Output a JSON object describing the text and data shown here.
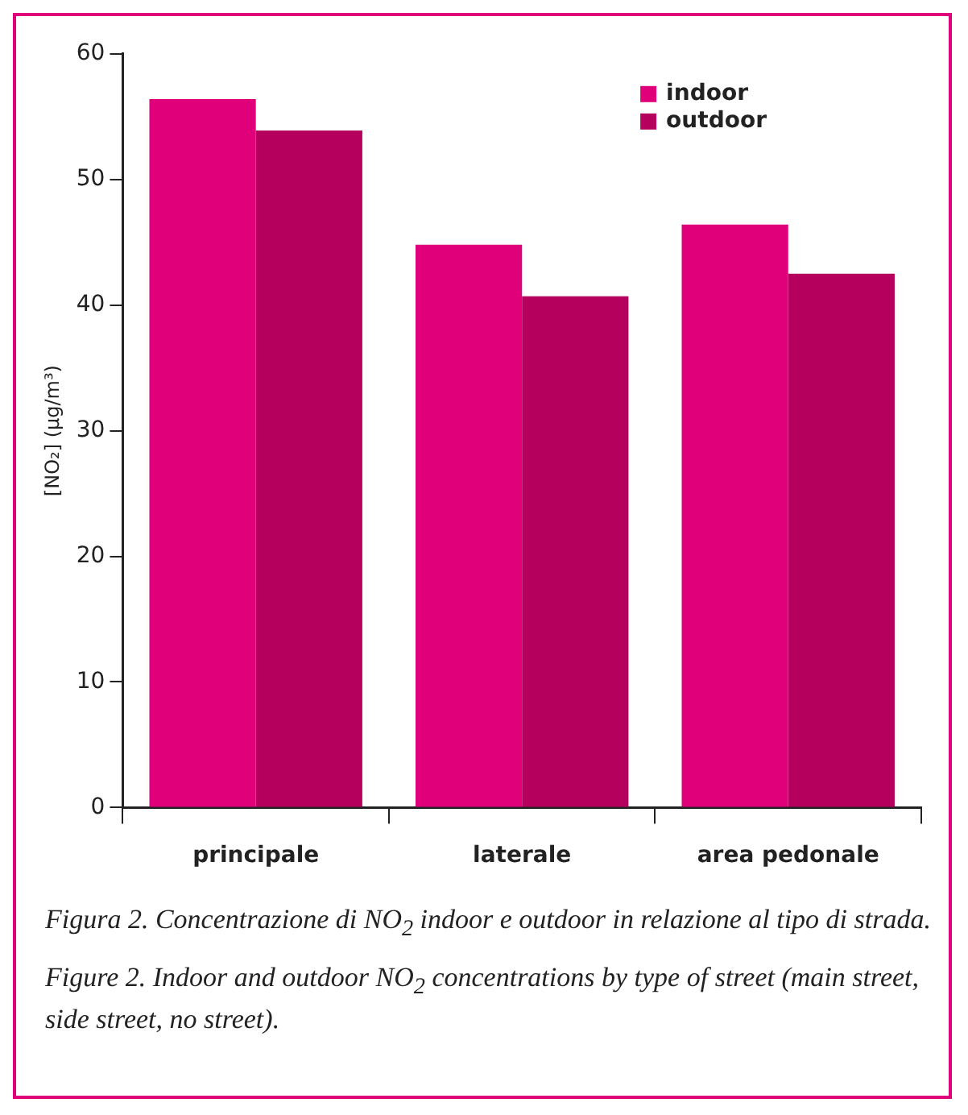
{
  "chart_data": {
    "type": "bar",
    "ylabel": "[NO₂] (µg/m³)",
    "categories": [
      "principale",
      "laterale",
      "area pedonale"
    ],
    "series": [
      {
        "name": "indoor",
        "color": "#e0007a",
        "values": [
          56.4,
          44.8,
          46.4
        ]
      },
      {
        "name": "outdoor",
        "color": "#b5005e",
        "values": [
          53.9,
          40.7,
          42.5
        ]
      }
    ],
    "ylim": [
      0,
      60
    ],
    "yticks": [
      0,
      10,
      20,
      30,
      40,
      50,
      60
    ],
    "grid": false,
    "legend": "top right",
    "annotations": [
      "Figura 2. Concentrazione di NO$_{2}$ indoor e outdoor in relazione al tipo di strada.",
      "Figure 2. Indoor and outdoor NO$_{2}$ concentrations by type of street (main street, side street, no street)."
    ]
  }
}
